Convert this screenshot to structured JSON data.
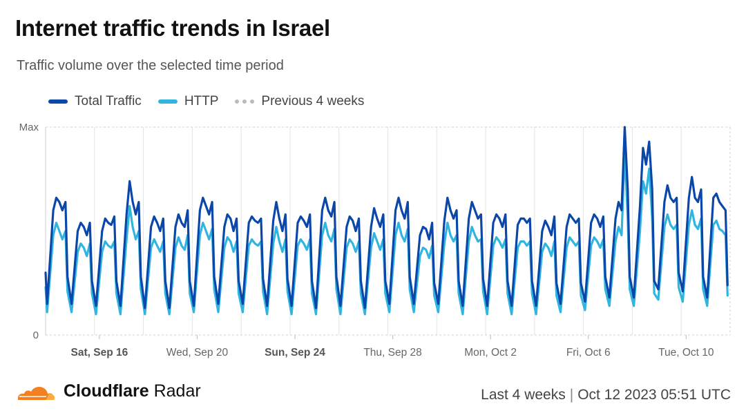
{
  "header": {
    "title": "Internet traffic trends in Israel",
    "subtitle": "Traffic volume over the selected time period"
  },
  "legend": [
    {
      "label": "Total Traffic",
      "color": "#0a47a9",
      "style": "solid"
    },
    {
      "label": "HTTP",
      "color": "#2fb5e0",
      "style": "solid"
    },
    {
      "label": "Previous 4 weeks",
      "color": "#bbbbbb",
      "style": "dotted"
    }
  ],
  "chart_data": {
    "type": "line",
    "title": "Internet traffic trends in Israel",
    "y_tick_labels": [
      "Max",
      "0"
    ],
    "ylim": [
      0,
      100
    ],
    "x_tick_labels": [
      {
        "label": "Sat, Sep 16",
        "bold": true
      },
      {
        "label": "Wed, Sep 20",
        "bold": false
      },
      {
        "label": "Sun, Sep 24",
        "bold": true
      },
      {
        "label": "Thu, Sep 28",
        "bold": false
      },
      {
        "label": "Mon, Oct 2",
        "bold": false
      },
      {
        "label": "Fri, Oct 6",
        "bold": false
      },
      {
        "label": "Tue, Oct 10",
        "bold": false
      }
    ],
    "daily_hours": [
      0,
      6,
      9,
      12,
      15,
      18,
      20
    ],
    "series": [
      {
        "name": "Total Traffic",
        "color": "#0a47a9",
        "start_value": 30,
        "daily_pattern": [
          [
            15,
            60,
            66,
            64,
            60,
            64,
            28
          ],
          [
            15,
            50,
            54,
            52,
            48,
            54,
            26
          ],
          [
            14,
            50,
            56,
            54,
            53,
            57,
            26
          ],
          [
            14,
            58,
            74,
            64,
            58,
            64,
            28
          ],
          [
            13,
            52,
            57,
            54,
            50,
            56,
            26
          ],
          [
            13,
            52,
            58,
            54,
            52,
            60,
            26
          ],
          [
            14,
            60,
            66,
            62,
            58,
            64,
            28
          ],
          [
            15,
            52,
            58,
            56,
            50,
            56,
            26
          ],
          [
            15,
            54,
            57,
            55,
            54,
            56,
            27
          ],
          [
            14,
            55,
            64,
            56,
            50,
            58,
            27
          ],
          [
            14,
            54,
            57,
            55,
            52,
            58,
            26
          ],
          [
            13,
            60,
            66,
            60,
            57,
            64,
            28
          ],
          [
            14,
            52,
            57,
            55,
            50,
            56,
            26
          ],
          [
            13,
            52,
            61,
            56,
            52,
            58,
            26
          ],
          [
            15,
            60,
            66,
            60,
            56,
            64,
            28
          ],
          [
            15,
            48,
            52,
            51,
            46,
            54,
            25
          ],
          [
            15,
            55,
            66,
            60,
            56,
            60,
            26
          ],
          [
            14,
            56,
            64,
            60,
            56,
            58,
            27
          ],
          [
            14,
            54,
            58,
            56,
            52,
            58,
            26
          ],
          [
            14,
            53,
            56,
            56,
            54,
            56,
            26
          ],
          [
            14,
            50,
            55,
            52,
            48,
            57,
            25
          ],
          [
            15,
            52,
            58,
            56,
            54,
            56,
            25
          ],
          [
            16,
            54,
            58,
            56,
            52,
            57,
            28
          ],
          [
            18,
            56,
            64,
            60,
            100,
            70,
            28
          ],
          [
            18,
            62,
            90,
            82,
            93,
            70,
            26
          ],
          [
            22,
            64,
            72,
            66,
            64,
            66,
            30
          ],
          [
            21,
            66,
            76,
            66,
            64,
            70,
            28
          ],
          [
            18,
            66,
            68,
            64,
            62,
            60,
            24
          ]
        ]
      },
      {
        "name": "HTTP",
        "color": "#2fb5e0",
        "start_value": 23,
        "daily_pattern": [
          [
            11,
            48,
            54,
            50,
            46,
            50,
            21
          ],
          [
            11,
            40,
            44,
            42,
            38,
            44,
            20
          ],
          [
            10,
            40,
            45,
            43,
            42,
            45,
            20
          ],
          [
            10,
            46,
            62,
            52,
            46,
            50,
            22
          ],
          [
            10,
            42,
            46,
            43,
            40,
            45,
            20
          ],
          [
            10,
            42,
            47,
            43,
            41,
            48,
            20
          ],
          [
            11,
            48,
            54,
            50,
            46,
            51,
            22
          ],
          [
            11,
            42,
            47,
            45,
            40,
            45,
            20
          ],
          [
            11,
            43,
            46,
            44,
            43,
            45,
            21
          ],
          [
            10,
            44,
            52,
            45,
            40,
            46,
            21
          ],
          [
            10,
            43,
            46,
            44,
            41,
            46,
            20
          ],
          [
            10,
            48,
            54,
            48,
            45,
            51,
            22
          ],
          [
            10,
            42,
            46,
            44,
            40,
            45,
            20
          ],
          [
            10,
            42,
            49,
            45,
            41,
            46,
            20
          ],
          [
            11,
            48,
            54,
            48,
            45,
            51,
            22
          ],
          [
            11,
            38,
            42,
            41,
            37,
            43,
            19
          ],
          [
            11,
            44,
            54,
            48,
            45,
            48,
            20
          ],
          [
            10,
            45,
            52,
            48,
            45,
            46,
            21
          ],
          [
            10,
            43,
            47,
            45,
            42,
            46,
            20
          ],
          [
            10,
            42,
            45,
            45,
            43,
            45,
            20
          ],
          [
            10,
            40,
            44,
            42,
            38,
            45,
            19
          ],
          [
            11,
            42,
            47,
            45,
            43,
            45,
            19
          ],
          [
            12,
            43,
            47,
            45,
            42,
            46,
            22
          ],
          [
            14,
            45,
            52,
            48,
            88,
            56,
            22
          ],
          [
            14,
            50,
            74,
            68,
            80,
            56,
            20
          ],
          [
            17,
            52,
            58,
            53,
            51,
            53,
            23
          ],
          [
            16,
            53,
            60,
            53,
            51,
            56,
            22
          ],
          [
            14,
            53,
            55,
            51,
            50,
            48,
            19
          ]
        ]
      }
    ],
    "grid": true,
    "legend_position": "top-left"
  },
  "footer": {
    "brand_bold": "Cloudflare",
    "brand_light": "Radar",
    "period": "Last 4 weeks",
    "separator": "|",
    "timestamp": "Oct 12 2023 05:51 UTC"
  },
  "colors": {
    "cloud_orange": "#f38020",
    "cloud_light": "#faae40",
    "grid": "#d6d6d6"
  }
}
